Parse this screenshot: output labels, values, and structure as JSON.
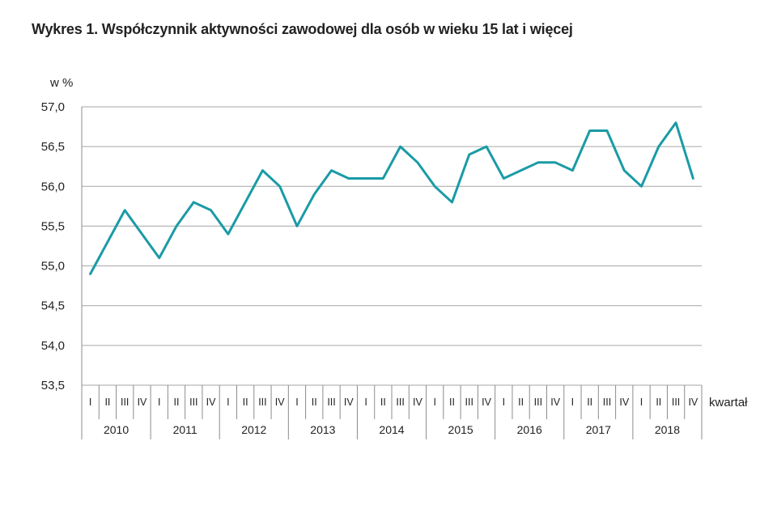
{
  "chart_data": {
    "type": "line",
    "title": "Wykres 1. Współczynnik aktywności zawodowej dla osób w wieku 15 lat i więcej",
    "ylabel": "w %",
    "xlabel": "kwartał",
    "ylim": [
      53.5,
      57.0
    ],
    "yticks": [
      "57,0",
      "56,5",
      "56,0",
      "55,5",
      "55,0",
      "54,5",
      "54,0",
      "53,5"
    ],
    "quarters": [
      "I",
      "II",
      "III",
      "IV"
    ],
    "years": [
      "2010",
      "2011",
      "2012",
      "2013",
      "2014",
      "2015",
      "2016",
      "2017",
      "2018"
    ],
    "grid": "horizontal",
    "line_color": "#1a9ba6",
    "series": [
      {
        "values": [
          54.9,
          55.3,
          55.7,
          55.4,
          55.1,
          55.5,
          55.8,
          55.7,
          55.4,
          55.8,
          56.2,
          56.0,
          55.5,
          55.9,
          56.2,
          56.1,
          56.1,
          56.1,
          56.5,
          56.3,
          56.0,
          55.8,
          56.4,
          56.5,
          56.1,
          56.2,
          56.3,
          56.3,
          56.2,
          56.7,
          56.7,
          56.2,
          56.0,
          56.5,
          56.8,
          56.1
        ]
      }
    ]
  }
}
